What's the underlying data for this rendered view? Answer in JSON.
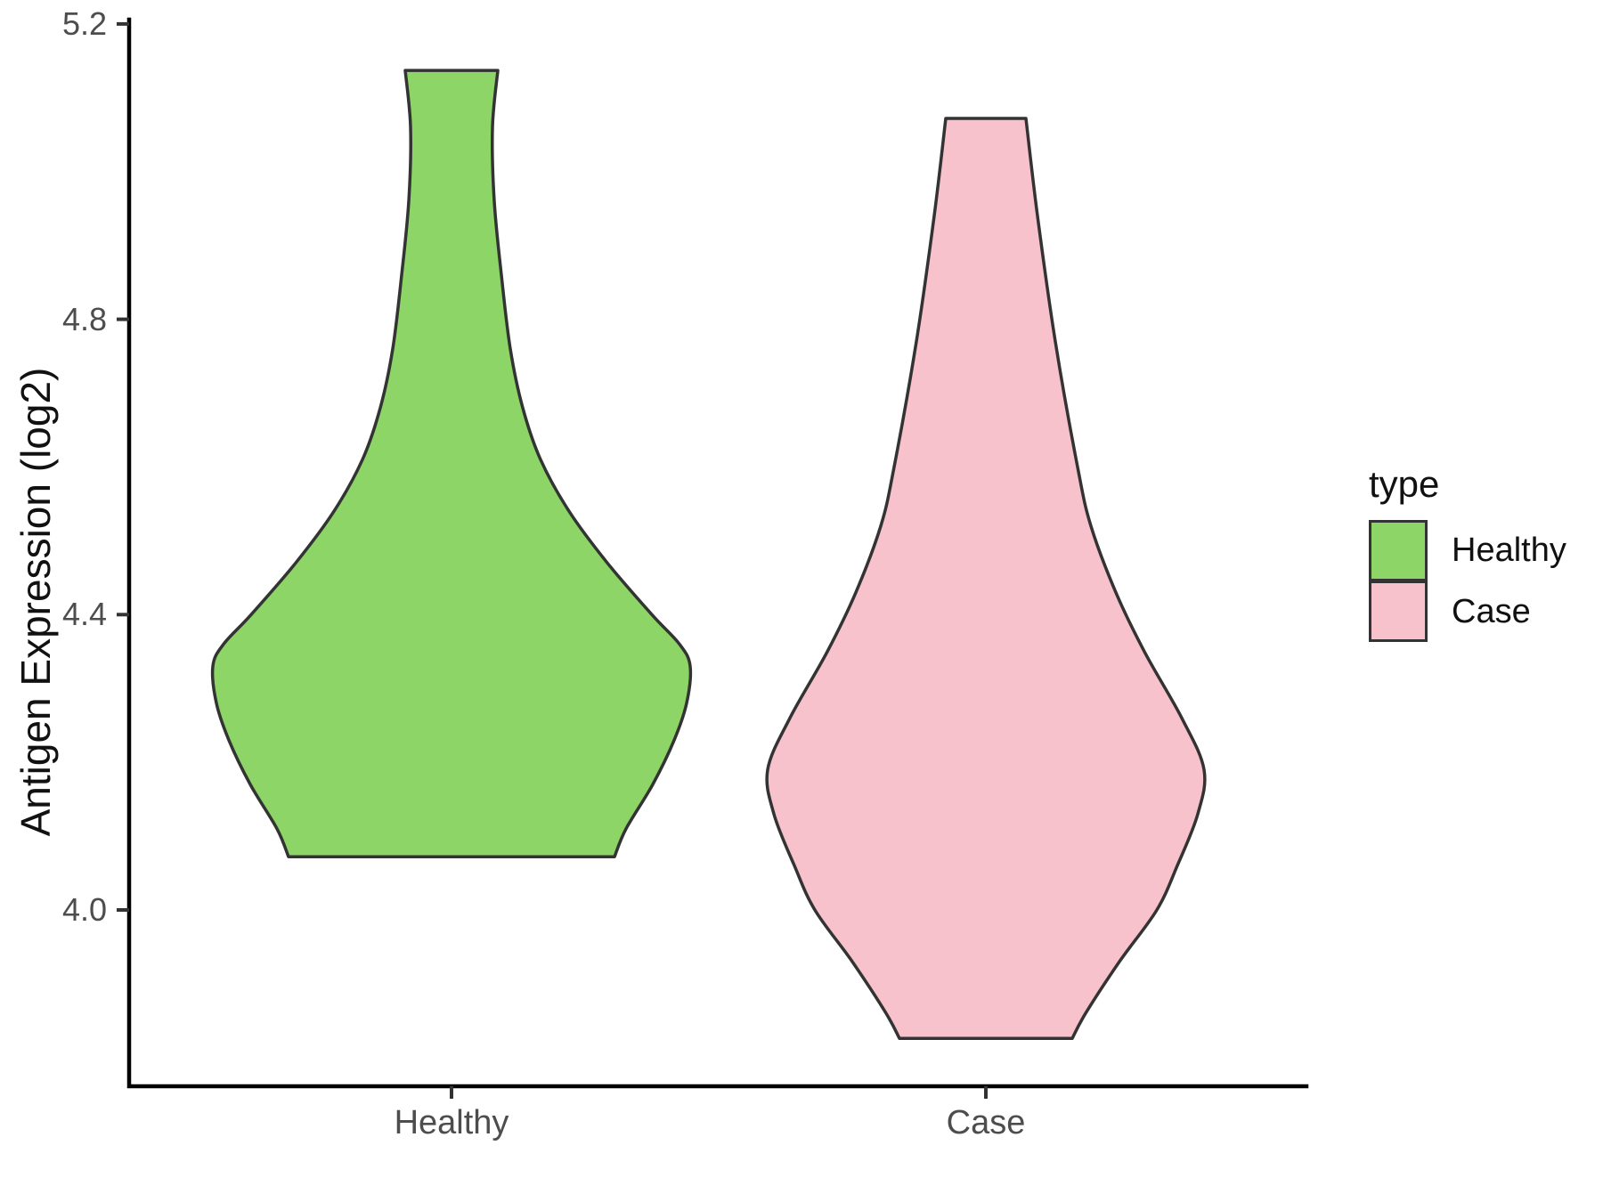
{
  "chart_data": {
    "type": "violin",
    "title": "",
    "xlabel": "",
    "ylabel": "Antigen Expression (log2)",
    "categories": [
      "Healthy",
      "Case"
    ],
    "y_ticks": [
      "5.2",
      "4.8",
      "4.4",
      "4.0"
    ],
    "y_tick_values": [
      5.2,
      4.8,
      4.4,
      4.0
    ],
    "ylim": [
      3.76,
      5.21
    ],
    "grid": "off",
    "legend": {
      "title": "type",
      "position": "right",
      "entries": [
        {
          "label": "Healthy",
          "color": "#8DD566"
        },
        {
          "label": "Case",
          "color": "#F8C2CD"
        }
      ]
    },
    "outline_color": "#333333",
    "axis_color": "#000000",
    "tick_color": "#333333",
    "series": [
      {
        "name": "Healthy",
        "fill": "#8DD566",
        "trim_top_value": 5.14,
        "trim_bottom_value": 4.07,
        "density_profile": [
          [
            5.137,
            52
          ],
          [
            5.06,
            46
          ],
          [
            4.96,
            48
          ],
          [
            4.86,
            56
          ],
          [
            4.76,
            66
          ],
          [
            4.68,
            80
          ],
          [
            4.61,
            100
          ],
          [
            4.54,
            132
          ],
          [
            4.47,
            175
          ],
          [
            4.4,
            225
          ],
          [
            4.36,
            256
          ],
          [
            4.33,
            268
          ],
          [
            4.28,
            264
          ],
          [
            4.23,
            250
          ],
          [
            4.17,
            226
          ],
          [
            4.11,
            196
          ],
          [
            4.072,
            183
          ]
        ]
      },
      {
        "name": "Case",
        "fill": "#F8C2CD",
        "trim_top_value": 5.07,
        "trim_bottom_value": 3.83,
        "density_profile": [
          [
            5.072,
            45
          ],
          [
            4.94,
            58
          ],
          [
            4.77,
            78
          ],
          [
            4.6,
            103
          ],
          [
            4.52,
            118
          ],
          [
            4.43,
            146
          ],
          [
            4.35,
            178
          ],
          [
            4.26,
            220
          ],
          [
            4.19,
            245
          ],
          [
            4.13,
            238
          ],
          [
            4.06,
            215
          ],
          [
            4.0,
            192
          ],
          [
            3.93,
            150
          ],
          [
            3.86,
            112
          ],
          [
            3.826,
            97
          ]
        ]
      }
    ]
  }
}
